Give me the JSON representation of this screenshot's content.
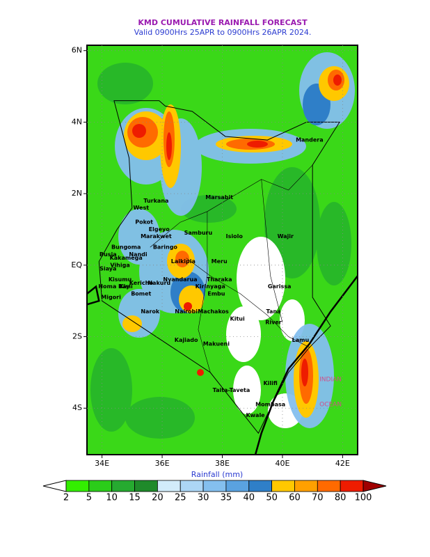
{
  "header": {
    "title": "KMD CUMULATIVE RAINFALL FORECAST",
    "subtitle": "Valid 0900Hrs 25APR to 0900Hrs 26APR 2024."
  },
  "map": {
    "lonlim": [
      33.5,
      42.5
    ],
    "latlim": [
      -5.3,
      6.15
    ],
    "lonticks": [
      {
        "value": 34,
        "label": "34E"
      },
      {
        "value": 36,
        "label": "36E"
      },
      {
        "value": 38,
        "label": "38E"
      },
      {
        "value": 40,
        "label": "40E"
      },
      {
        "value": 42,
        "label": "42E"
      }
    ],
    "latticks": [
      {
        "value": 6,
        "label": "6N"
      },
      {
        "value": 4,
        "label": "4N"
      },
      {
        "value": 2,
        "label": "2N"
      },
      {
        "value": 0,
        "label": "EQ"
      },
      {
        "value": -2,
        "label": "2S"
      },
      {
        "value": -4,
        "label": "4S"
      }
    ],
    "labels": [
      "Turkana",
      "Marsabit",
      "Mandera",
      "Wajir",
      "West",
      "Pokot",
      "Samburu",
      "Isiolo",
      "Elgeyo",
      "Marakwet",
      "Baringo",
      "Bungoma",
      "Kakamega",
      "Busia",
      "Vihiga",
      "Kisumu",
      "Siaya",
      "Homa Bay",
      "Migori",
      "Kisii",
      "Bomet",
      "Kericho",
      "Nandi",
      "Nakuru",
      "Laikipia",
      "Meru",
      "Nyandarua",
      "Tharaka",
      "Kirinyaga",
      "Embu",
      "Narok",
      "Nairobi",
      "Machakos",
      "Kitui",
      "Garissa",
      "Tana",
      "River",
      "Kajiado",
      "Makueni",
      "Lamu",
      "Kilifi",
      "Taita-Taveta",
      "Mombasa",
      "Kwale",
      "INDIAN",
      "OCEAN"
    ]
  },
  "colorbar": {
    "label": "Rainfall (mm)",
    "ticks": [
      2,
      5,
      10,
      15,
      20,
      25,
      30,
      35,
      40,
      50,
      60,
      70,
      80,
      100
    ],
    "colors": [
      "#ffffff",
      "#33ee00",
      "#2bcc1a",
      "#26aa30",
      "#1f8a2a",
      "#d2ecfa",
      "#acd6f5",
      "#84bfee",
      "#5aa2e0",
      "#2f7fc8",
      "#ffc800",
      "#ffa000",
      "#ff6a00",
      "#ee1c00",
      "#a00000"
    ]
  }
}
